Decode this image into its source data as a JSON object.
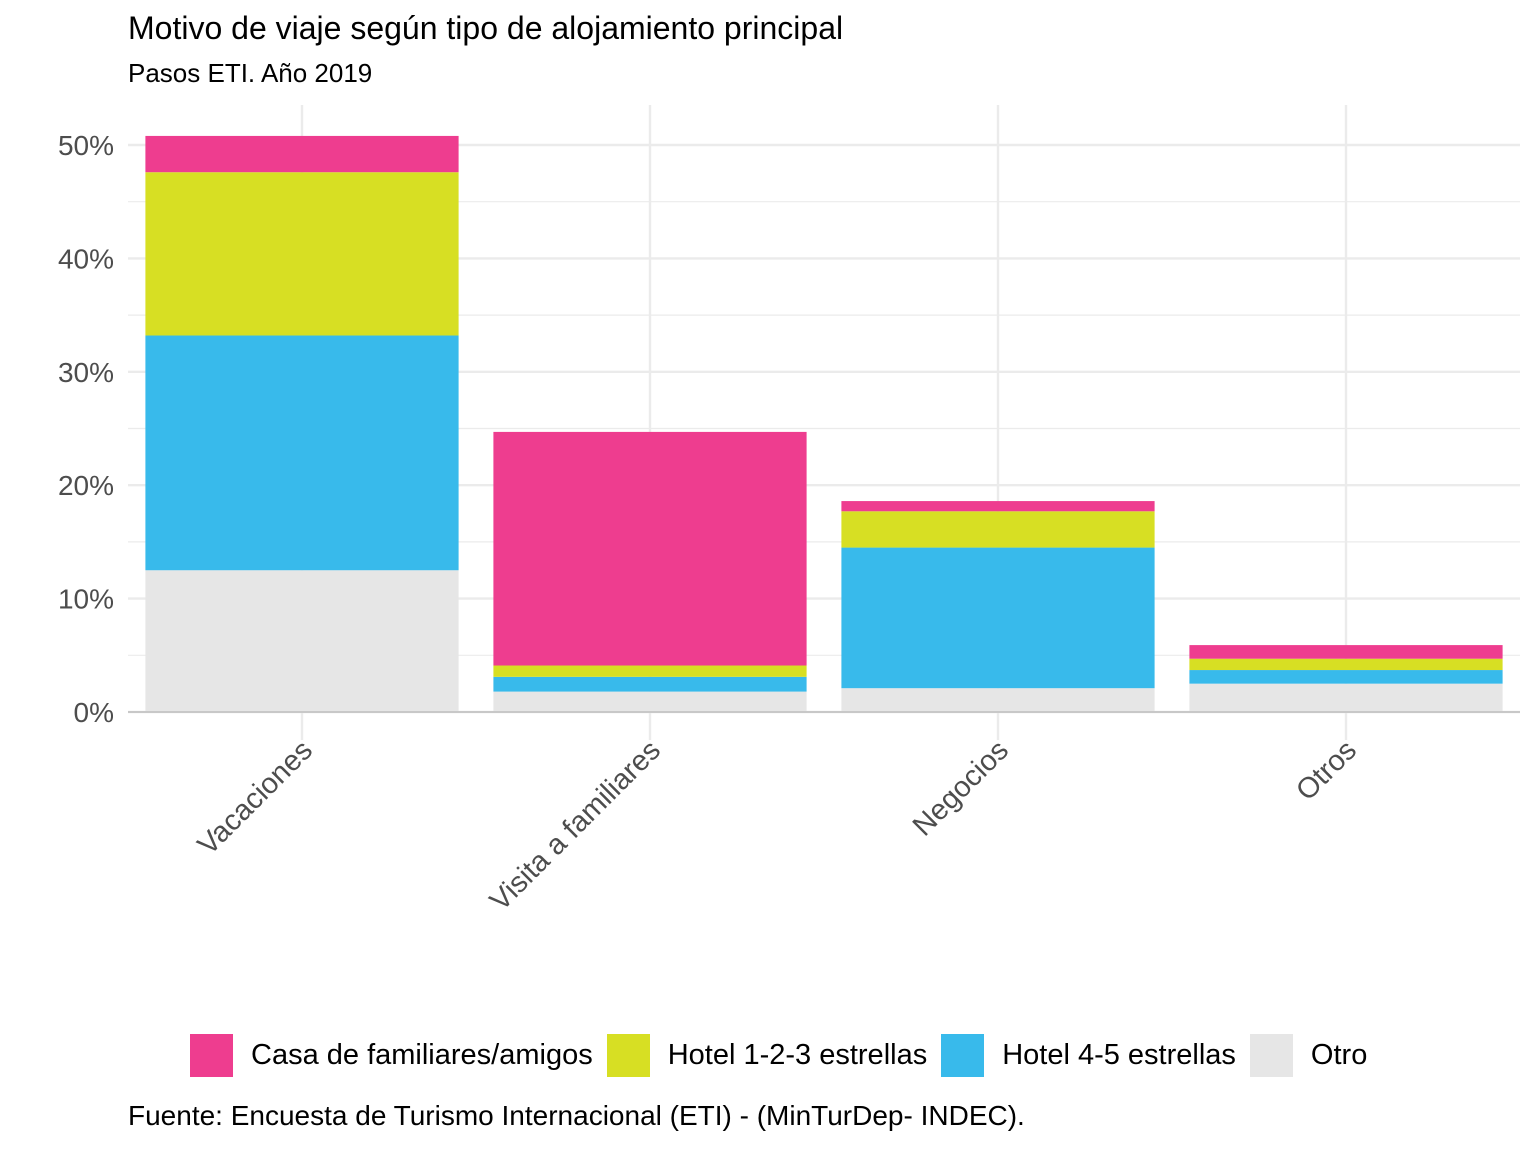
{
  "title": "Motivo de viaje según tipo de alojamiento principal",
  "subtitle": "Pasos ETI. Año 2019",
  "caption": "Fuente: Encuesta de Turismo Internacional (ETI) - (MinTurDep- INDEC).",
  "colors": {
    "casa": "#EE3D8F",
    "hotel123": "#D7DF23",
    "hotel45": "#38BAEB",
    "otro": "#E6E6E6",
    "grid": "#EBEBEB",
    "axis_text": "#4D4D4D"
  },
  "legend": [
    {
      "label": "Casa de familiares/amigos",
      "color": "#EE3D8F"
    },
    {
      "label": "Hotel 1-2-3 estrellas",
      "color": "#D7DF23"
    },
    {
      "label": "Hotel 4-5 estrellas",
      "color": "#38BAEB"
    },
    {
      "label": "Otro",
      "color": "#E6E6E6"
    }
  ],
  "chart_data": {
    "type": "bar",
    "stacked": true,
    "title": "Motivo de viaje según tipo de alojamiento principal",
    "subtitle": "Pasos ETI. Año 2019",
    "categories": [
      "Vacaciones",
      "Visita a familiares",
      "Negocios",
      "Otros"
    ],
    "series": [
      {
        "name": "Otro",
        "color": "#E6E6E6",
        "values": [
          12.5,
          1.8,
          2.1,
          2.5
        ]
      },
      {
        "name": "Hotel 4-5 estrellas",
        "color": "#38BAEB",
        "values": [
          20.7,
          1.3,
          12.4,
          1.2
        ]
      },
      {
        "name": "Hotel 1-2-3 estrellas",
        "color": "#D7DF23",
        "values": [
          14.4,
          1.0,
          3.2,
          1.0
        ]
      },
      {
        "name": "Casa de familiares/amigos",
        "color": "#EE3D8F",
        "values": [
          3.2,
          20.6,
          0.9,
          1.2
        ]
      }
    ],
    "y_ticks": [
      "0%",
      "10%",
      "20%",
      "30%",
      "40%",
      "50%"
    ],
    "y_tick_values": [
      0,
      10,
      20,
      30,
      40,
      50
    ],
    "ylim": [
      0,
      53.5
    ],
    "xlabel": "",
    "ylabel": "",
    "grid": true,
    "legend_position": "bottom"
  }
}
